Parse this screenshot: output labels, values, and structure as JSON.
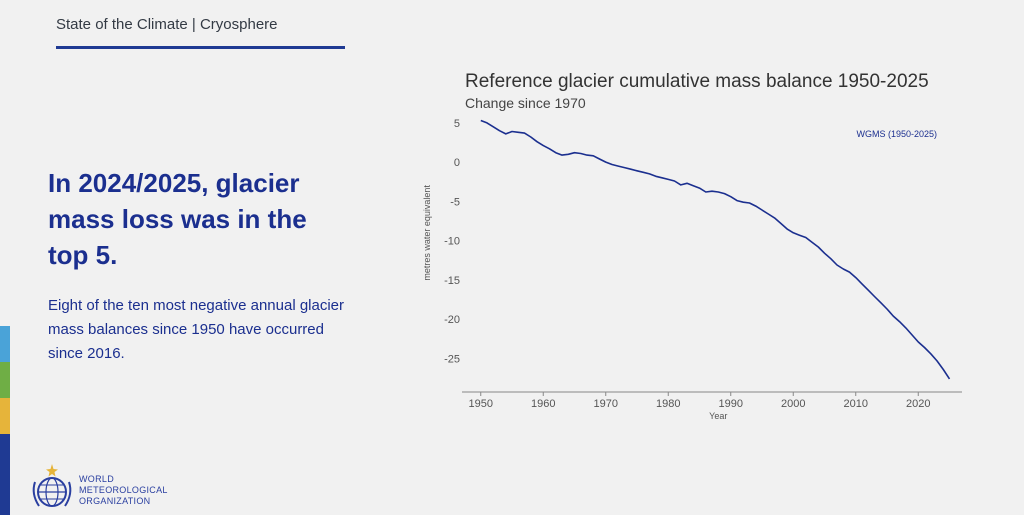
{
  "header": {
    "title": "State of the Climate | Cryosphere"
  },
  "main": {
    "headline_lines": [
      "In 2024/2025, glacier",
      "mass loss was in the",
      "top 5."
    ],
    "body_lines": [
      "Eight of the ten most negative annual glacier",
      "mass balances since 1950 have occurred",
      "since 2016."
    ]
  },
  "logo": {
    "icon": "wmo-globe-emblem-icon",
    "text_lines": [
      "WORLD",
      "METEOROLOGICAL",
      "ORGANIZATION"
    ]
  },
  "colors": {
    "accent": "#1f3a93",
    "headline": "#1b2f8f",
    "line": "#1b2f8f",
    "stripes": [
      "#4aa3d8",
      "#6fae45",
      "#e6b43a",
      "#1f3a93"
    ]
  },
  "chart_data": {
    "type": "line",
    "title": "Reference glacier cumulative mass balance 1950-2025",
    "subtitle": "Change since 1970",
    "xlabel": "Year",
    "ylabel": "metres water equivalent",
    "xlim": [
      1947,
      2027
    ],
    "ylim": [
      -28.5,
      6
    ],
    "xticks": [
      1950,
      1960,
      1970,
      1980,
      1990,
      2000,
      2010,
      2020
    ],
    "yticks": [
      5,
      0,
      -5,
      -10,
      -15,
      -20,
      -25
    ],
    "grid": false,
    "legend": "top-right",
    "series": [
      {
        "name": "WGMS (1950-2025)",
        "x": [
          1950,
          1951,
          1952,
          1953,
          1954,
          1955,
          1956,
          1957,
          1958,
          1959,
          1960,
          1961,
          1962,
          1963,
          1964,
          1965,
          1966,
          1967,
          1968,
          1969,
          1970,
          1971,
          1972,
          1973,
          1974,
          1975,
          1976,
          1977,
          1978,
          1979,
          1980,
          1981,
          1982,
          1983,
          1984,
          1985,
          1986,
          1987,
          1988,
          1989,
          1990,
          1991,
          1992,
          1993,
          1994,
          1995,
          1996,
          1997,
          1998,
          1999,
          2000,
          2001,
          2002,
          2003,
          2004,
          2005,
          2006,
          2007,
          2008,
          2009,
          2010,
          2011,
          2012,
          2013,
          2014,
          2015,
          2016,
          2017,
          2018,
          2019,
          2020,
          2021,
          2022,
          2023,
          2024,
          2025
        ],
        "values": [
          5.3,
          5.0,
          4.5,
          4.0,
          3.6,
          3.9,
          3.8,
          3.7,
          3.2,
          2.6,
          2.1,
          1.7,
          1.2,
          0.9,
          1.0,
          1.2,
          1.1,
          0.9,
          0.8,
          0.4,
          0.0,
          -0.3,
          -0.5,
          -0.7,
          -0.9,
          -1.1,
          -1.3,
          -1.5,
          -1.8,
          -2.0,
          -2.2,
          -2.4,
          -2.9,
          -2.7,
          -3.0,
          -3.3,
          -3.8,
          -3.7,
          -3.8,
          -4.0,
          -4.4,
          -4.9,
          -5.1,
          -5.2,
          -5.6,
          -6.1,
          -6.6,
          -7.1,
          -7.8,
          -8.5,
          -9.0,
          -9.3,
          -9.6,
          -10.2,
          -10.8,
          -11.6,
          -12.3,
          -13.1,
          -13.6,
          -14.0,
          -14.7,
          -15.5,
          -16.3,
          -17.1,
          -17.9,
          -18.7,
          -19.6,
          -20.3,
          -21.1,
          -22.0,
          -22.9,
          -23.6,
          -24.4,
          -25.3,
          -26.4,
          -27.6
        ]
      }
    ]
  }
}
